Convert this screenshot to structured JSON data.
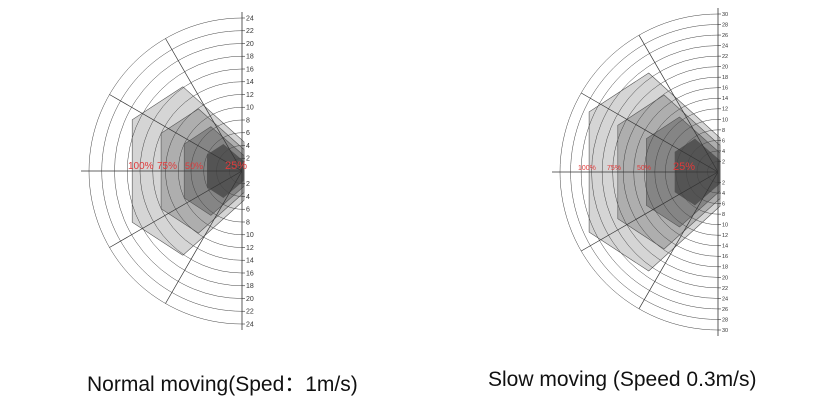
{
  "charts": [
    {
      "caption": "Normal moving(Sped：1m/s)",
      "tick_labels_upper": [
        "24",
        "22",
        "20",
        "18",
        "16",
        "14",
        "12",
        "10",
        "8",
        "6",
        "4",
        "2"
      ],
      "tick_labels_lower": [
        "2",
        "4",
        "6",
        "8",
        "10",
        "12",
        "14",
        "16",
        "18",
        "20",
        "22",
        "24"
      ],
      "radial_max": 24,
      "zones": [
        {
          "label": "100%",
          "radius": 19,
          "color": "#cfcfcf"
        },
        {
          "label": "75%",
          "radius": 14,
          "color": "#a8a8a8"
        },
        {
          "label": "50%",
          "radius": 10,
          "color": "#7f7f7f"
        },
        {
          "label": "25%",
          "radius": 6,
          "color": "#4d4d4d"
        }
      ],
      "zone_label_color": "#e03a3a"
    },
    {
      "caption": "Slow moving (Speed 0.3m/s)",
      "tick_labels_upper": [
        "30",
        "28",
        "26",
        "24",
        "22",
        "20",
        "18",
        "16",
        "14",
        "12",
        "10",
        "8",
        "6",
        "4",
        "2"
      ],
      "tick_labels_lower": [
        "2",
        "4",
        "6",
        "8",
        "10",
        "12",
        "14",
        "16",
        "18",
        "20",
        "22",
        "24",
        "26",
        "28",
        "30"
      ],
      "radial_max": 30,
      "zones": [
        {
          "label": "100%",
          "radius": 27,
          "color": "#cfcfcf"
        },
        {
          "label": "75%",
          "radius": 21,
          "color": "#a8a8a8"
        },
        {
          "label": "50%",
          "radius": 15,
          "color": "#7f7f7f"
        },
        {
          "label": "25%",
          "radius": 9,
          "color": "#4d4d4d"
        }
      ],
      "zone_label_color": "#e03a3a"
    }
  ]
}
